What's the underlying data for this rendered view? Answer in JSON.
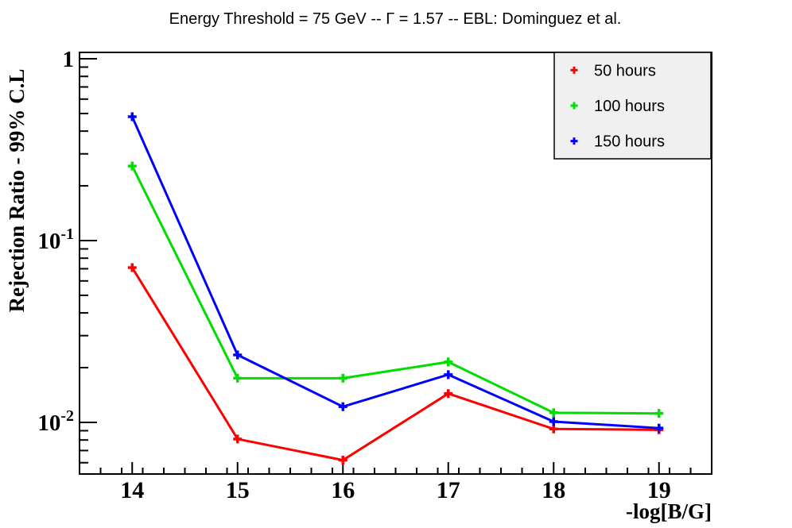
{
  "title": "Energy Threshold = 75 GeV -- Γ = 1.57 -- EBL: Dominguez et al.",
  "chart_data": {
    "type": "line",
    "x": [
      14,
      15,
      16,
      17,
      18,
      19
    ],
    "series": [
      {
        "name": "50 hours",
        "color": "#ff0000",
        "marker": "plus",
        "values": [
          0.071,
          0.0081,
          0.0062,
          0.0144,
          0.0092,
          0.0091
        ]
      },
      {
        "name": "100 hours",
        "color": "#00dd00",
        "marker": "plus",
        "values": [
          0.257,
          0.0175,
          0.0175,
          0.0215,
          0.0113,
          0.0112
        ]
      },
      {
        "name": "150 hours",
        "color": "#0000ff",
        "marker": "plus",
        "values": [
          0.48,
          0.0235,
          0.0122,
          0.0183,
          0.0101,
          0.0093
        ]
      }
    ],
    "xlabel": "-log[B/G]",
    "ylabel": "Rejection Ratio - 99% C.L",
    "xlim": [
      13.5,
      19.5
    ],
    "ylim": [
      0.0052,
      1.084
    ],
    "yscale": "log",
    "xscale": "linear",
    "grid": false,
    "x_major_ticks": [
      14,
      15,
      16,
      17,
      18,
      19
    ],
    "x_major_tick_labels": [
      "14",
      "15",
      "16",
      "17",
      "18",
      "19"
    ],
    "x_minor_step": 0.2,
    "y_major_ticks": [
      1,
      0.1,
      0.01
    ],
    "y_major_labels": [
      "1",
      "10^-1",
      "10^-2"
    ],
    "legend": {
      "position": "top-right",
      "background": "#f0f0f0",
      "border_color": "#000000",
      "entries": [
        "50 hours",
        "100 hours",
        "150 hours"
      ]
    },
    "frame_color": "#000000",
    "background_color": "#ffffff",
    "text_color": "#000000"
  }
}
